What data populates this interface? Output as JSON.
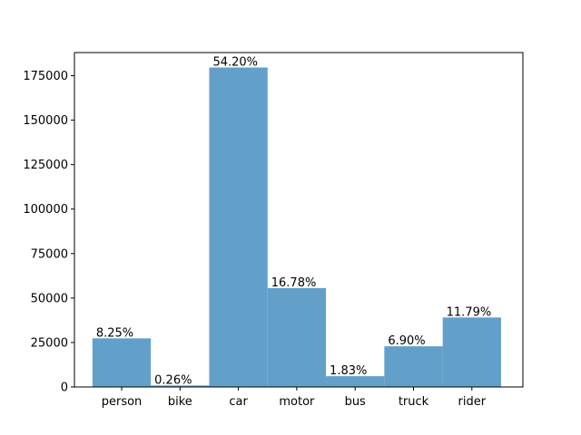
{
  "chart_data": {
    "type": "bar",
    "categories": [
      "person",
      "bike",
      "car",
      "motor",
      "bus",
      "truck",
      "rider"
    ],
    "values": [
      27340,
      862,
      179600,
      55600,
      6060,
      22870,
      39070
    ],
    "percent_labels": [
      "8.25%",
      "0.26%",
      "54.20%",
      "16.78%",
      "1.83%",
      "6.90%",
      "11.79%"
    ],
    "color": "#62a0ca",
    "ylim": [
      0,
      188000
    ],
    "yticks": [
      0,
      25000,
      50000,
      75000,
      100000,
      125000,
      150000,
      175000
    ],
    "grid": false
  }
}
